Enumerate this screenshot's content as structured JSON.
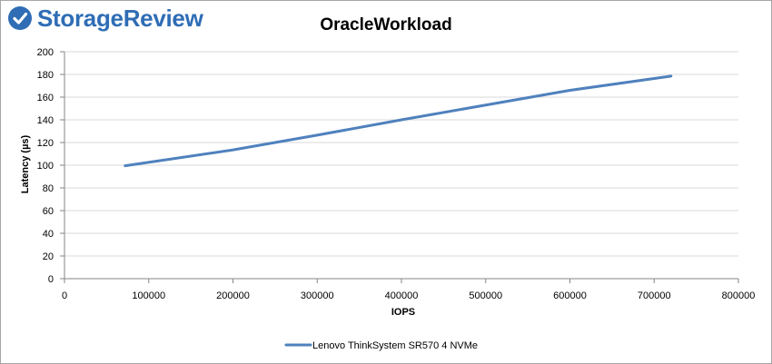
{
  "logo": {
    "text": "StorageReview"
  },
  "chart_data": {
    "type": "line",
    "title": "OracleWorkload",
    "xlabel": "IOPS",
    "ylabel": "Latency (µs)",
    "xlim": [
      0,
      800000
    ],
    "ylim": [
      0,
      200
    ],
    "xticks": [
      0,
      100000,
      200000,
      300000,
      400000,
      500000,
      600000,
      700000,
      800000
    ],
    "yticks": [
      0,
      20,
      40,
      60,
      80,
      100,
      120,
      140,
      160,
      180,
      200
    ],
    "grid": true,
    "legend_position": "bottom",
    "series": [
      {
        "name": "Lenovo ThinkSystem SR570 4 NVMe",
        "color": "#4f81bd",
        "x": [
          72000,
          200000,
          300000,
          400000,
          500000,
          600000,
          720000
        ],
        "y": [
          99.5,
          113.5,
          126.5,
          140,
          153,
          166,
          178.5
        ]
      }
    ]
  }
}
